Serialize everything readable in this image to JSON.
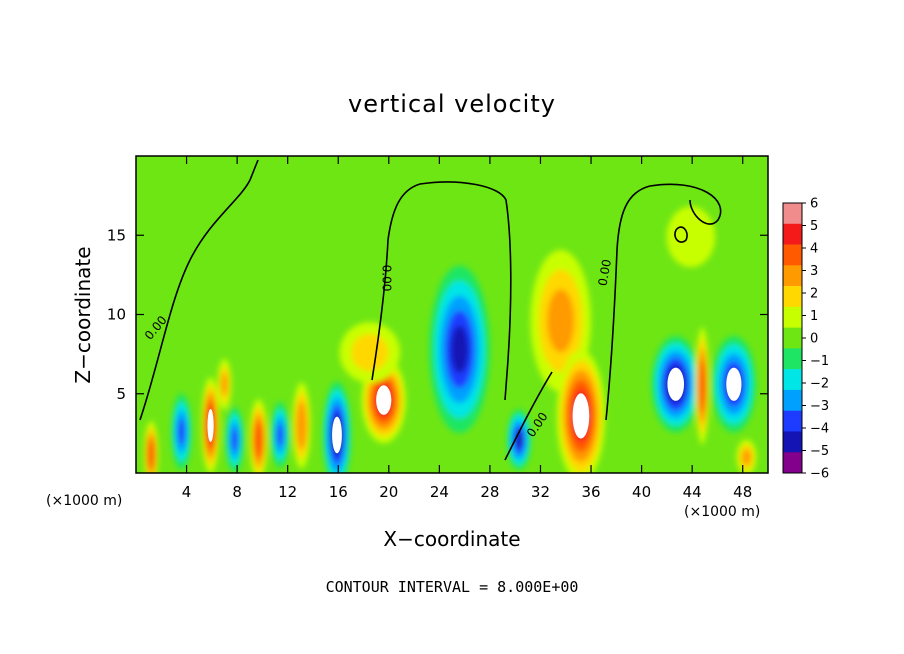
{
  "chart_data": {
    "type": "heatmap",
    "title": "vertical velocity",
    "xlabel": "X−coordinate",
    "ylabel": "Z−coordinate",
    "x_unit_left": "(×1000 m)",
    "x_unit_right": "(×1000 m)",
    "xlim": [
      0,
      50
    ],
    "ylim": [
      0,
      20
    ],
    "x_ticks": [
      4,
      8,
      12,
      16,
      20,
      24,
      28,
      32,
      36,
      40,
      44,
      48
    ],
    "y_ticks": [
      5,
      10,
      15
    ],
    "footer": "CONTOUR INTERVAL = 8.000E+00",
    "colorbar": {
      "ticks": [
        "6",
        "5",
        "4",
        "3",
        "2",
        "1",
        "0",
        "−1",
        "−2",
        "−3",
        "−4",
        "−5",
        "−6"
      ],
      "colors": [
        "#f08c8c",
        "#f51a1a",
        "#ff5a00",
        "#ff9a00",
        "#ffd800",
        "#c8ff00",
        "#6ee614",
        "#1ee664",
        "#00e6e6",
        "#00a0ff",
        "#1e3cff",
        "#1414b4",
        "#82008c"
      ]
    },
    "contour_labels": [
      {
        "text": "0.00",
        "x": 1.8,
        "y": 9.0,
        "angle": -50
      },
      {
        "text": "0.00",
        "x": 19.5,
        "y": 12.3,
        "angle": 90
      },
      {
        "text": "0.00",
        "x": 32.0,
        "y": 2.9,
        "angle": -55
      },
      {
        "text": "0.00",
        "x": 37.4,
        "y": 12.6,
        "angle": -80
      }
    ],
    "features": [
      {
        "kind": "updraft",
        "x": 1.2,
        "z": 1.2,
        "w": 4.5,
        "sx": 0.35,
        "sz": 1.3
      },
      {
        "kind": "downdraft",
        "x": 3.6,
        "z": 2.6,
        "w": -4.0,
        "sx": 0.5,
        "sz": 1.5
      },
      {
        "kind": "updraft",
        "x": 5.9,
        "z": 3.0,
        "w": 5.2,
        "sx": 0.45,
        "sz": 1.9
      },
      {
        "kind": "updraft",
        "x": 7.0,
        "z": 5.6,
        "w": 3.0,
        "sx": 0.35,
        "sz": 1.0
      },
      {
        "kind": "downdraft",
        "x": 7.8,
        "z": 2.1,
        "w": -4.0,
        "sx": 0.45,
        "sz": 1.3
      },
      {
        "kind": "updraft",
        "x": 9.7,
        "z": 2.1,
        "w": 4.2,
        "sx": 0.45,
        "sz": 1.6
      },
      {
        "kind": "downdraft",
        "x": 11.4,
        "z": 2.4,
        "w": -3.5,
        "sx": 0.45,
        "sz": 1.3
      },
      {
        "kind": "updraft",
        "x": 13.1,
        "z": 3.0,
        "w": 3.3,
        "sx": 0.45,
        "sz": 1.7
      },
      {
        "kind": "downdraft",
        "x": 15.9,
        "z": 2.4,
        "w": -5.2,
        "sx": 0.7,
        "sz": 2.1
      },
      {
        "kind": "updraft",
        "x": 19.6,
        "z": 4.6,
        "w": 5.5,
        "sx": 1.1,
        "sz": 1.7
      },
      {
        "kind": "updraft",
        "x": 18.5,
        "z": 7.6,
        "w": 2.0,
        "sx": 1.5,
        "sz": 1.2
      },
      {
        "kind": "downdraft",
        "x": 25.6,
        "z": 7.8,
        "w": -4.6,
        "sx": 1.5,
        "sz": 3.3
      },
      {
        "kind": "downdraft",
        "x": 30.3,
        "z": 2.1,
        "w": -4.6,
        "sx": 0.6,
        "sz": 1.2
      },
      {
        "kind": "updraft",
        "x": 33.6,
        "z": 9.6,
        "w": 3.0,
        "sx": 1.5,
        "sz": 2.8
      },
      {
        "kind": "updraft",
        "x": 35.2,
        "z": 3.6,
        "w": 6.0,
        "sx": 1.2,
        "sz": 2.6
      },
      {
        "kind": "downdraft",
        "x": 42.7,
        "z": 5.6,
        "w": -5.2,
        "sx": 1.2,
        "sz": 1.9
      },
      {
        "kind": "downdraft",
        "x": 47.3,
        "z": 5.6,
        "w": -5.0,
        "sx": 1.1,
        "sz": 1.9
      },
      {
        "kind": "updraft",
        "x": 44.8,
        "z": 5.5,
        "w": 4.2,
        "sx": 0.35,
        "sz": 2.3
      },
      {
        "kind": "updraft",
        "x": 48.3,
        "z": 1.0,
        "w": 2.6,
        "sx": 0.5,
        "sz": 0.7
      },
      {
        "kind": "updraft",
        "x": 43.9,
        "z": 14.9,
        "w": 1.3,
        "sx": 1.2,
        "sz": 1.2
      }
    ]
  }
}
